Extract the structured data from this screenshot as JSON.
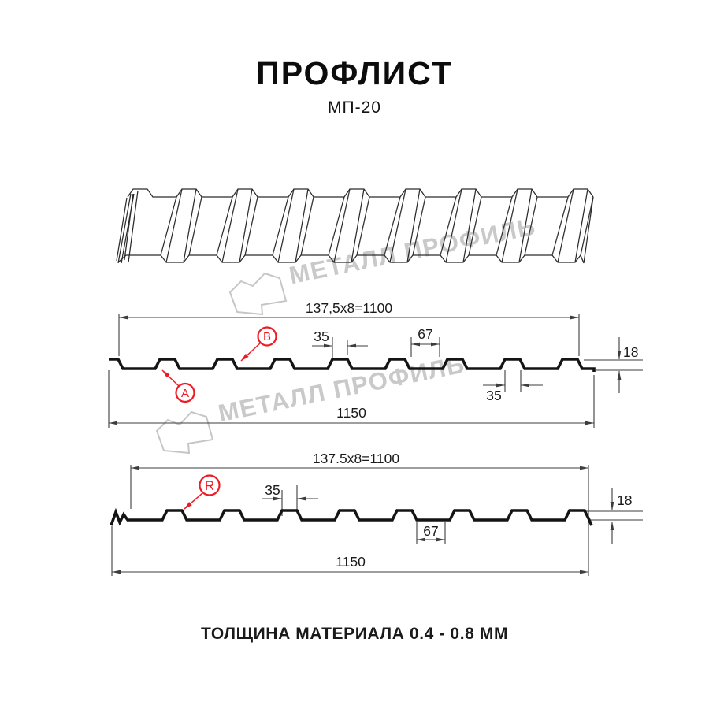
{
  "title": "ПРОФЛИСТ",
  "subtitle": "МП-20",
  "footer": "ТОЛЩИНА МАТЕРИАЛА 0.4 - 0.8 ММ",
  "watermark": {
    "text": "МЕТАЛЛ ПРОФИЛЬ"
  },
  "colors": {
    "accent_red": "#ed1c24",
    "line_dark": "#141414",
    "line_thin": "#3d3d3d",
    "watermark_gray": "#c9c9c9"
  },
  "profile_top": {
    "pitch_label": "137,5x8=1100",
    "overall_label": "1150",
    "rib_top_label": "35",
    "valley_label": "67",
    "height_label": "18",
    "rib_bottom_label": "35",
    "marker_a": "A",
    "marker_b": "B"
  },
  "profile_bottom": {
    "pitch_label": "137.5x8=1100",
    "overall_label": "1150",
    "rib_label": "35",
    "valley_label": "67",
    "height_label": "18",
    "marker_r": "R"
  }
}
